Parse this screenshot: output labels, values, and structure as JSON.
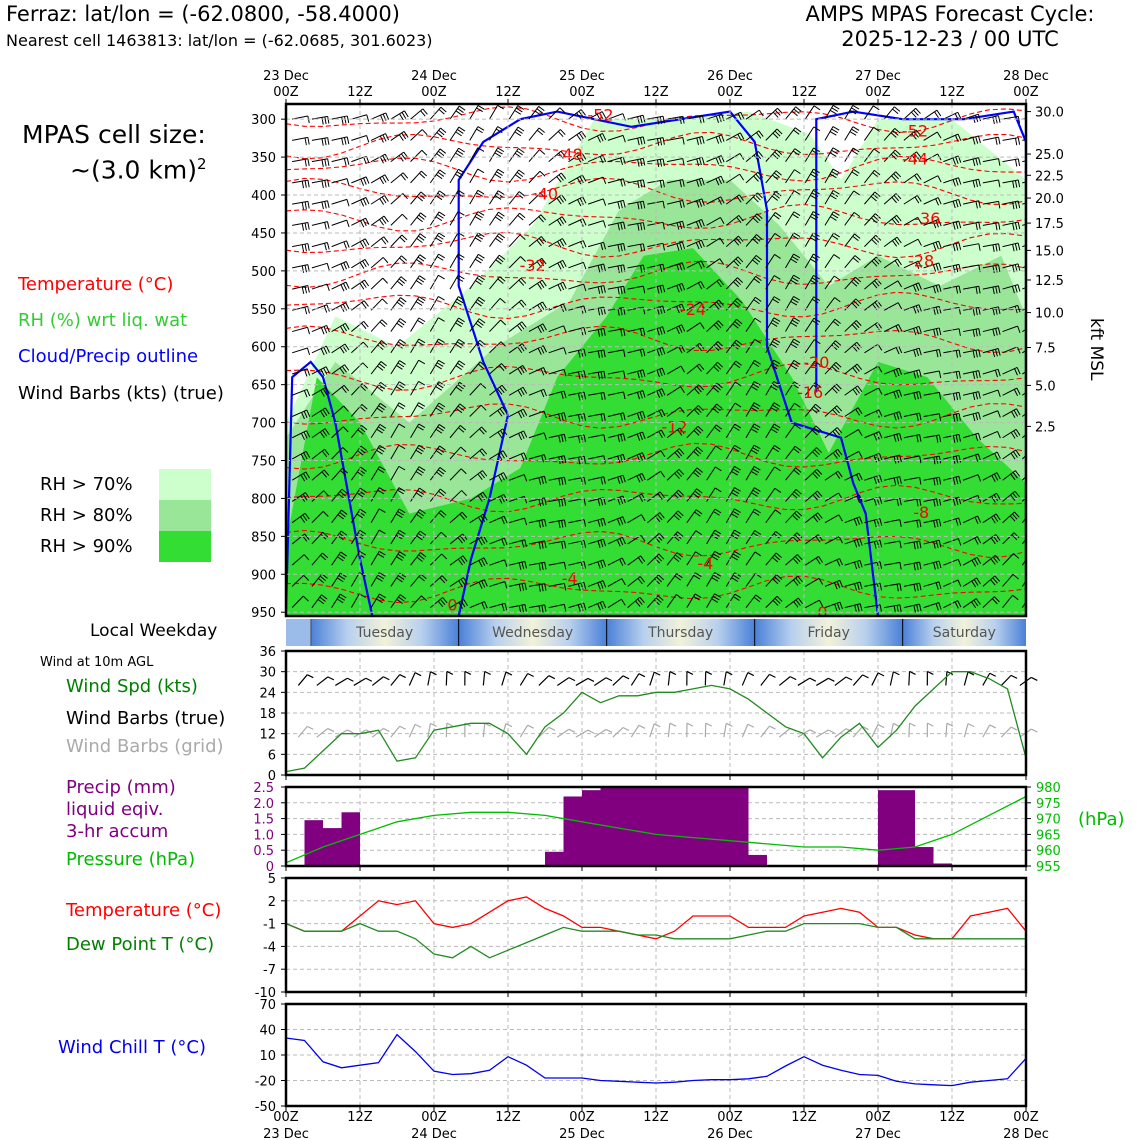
{
  "header": {
    "location": "Ferraz: lat/lon = (-62.0800, -58.4000)",
    "nearest_cell": "Nearest cell 1463813: lat/lon = (-62.0685, 301.6023)",
    "forecast_title": "AMPS MPAS Forecast Cycle:",
    "forecast_cycle": "2025-12-23 / 00 UTC"
  },
  "cell_size": {
    "line1": "MPAS cell size:",
    "line2_prefix": "~(3.0 km)",
    "line2_sup": "2"
  },
  "legend": {
    "temperature": "Temperature (°C)",
    "rh": "RH (%) wrt liq. wat",
    "cloud": "Cloud/Precip outline",
    "wind_barbs": "Wind Barbs (kts) (true)",
    "rh70": "RH > 70%",
    "rh80": "RH > 80%",
    "rh90": "RH > 90%",
    "colors": {
      "temp": "#ff0000",
      "rh": "#33cc33",
      "cloud": "#0000ff",
      "rh70": "#ccffcc",
      "rh80": "#99e699",
      "rh90": "#33dd33",
      "precip": "#800080",
      "pressure": "#00bb00",
      "dew": "#007700",
      "windchill": "#0000ee"
    }
  },
  "time_axis": {
    "top_labels": [
      {
        "t": 0,
        "line1": "23 Dec",
        "line2": "00Z"
      },
      {
        "t": 12,
        "line1": "",
        "line2": "12Z"
      },
      {
        "t": 24,
        "line1": "24 Dec",
        "line2": "00Z"
      },
      {
        "t": 36,
        "line1": "",
        "line2": "12Z"
      },
      {
        "t": 48,
        "line1": "25 Dec",
        "line2": "00Z"
      },
      {
        "t": 60,
        "line1": "",
        "line2": "12Z"
      },
      {
        "t": 72,
        "line1": "26 Dec",
        "line2": "00Z"
      },
      {
        "t": 84,
        "line1": "",
        "line2": "12Z"
      },
      {
        "t": 96,
        "line1": "27 Dec",
        "line2": "00Z"
      },
      {
        "t": 108,
        "line1": "",
        "line2": "12Z"
      },
      {
        "t": 120,
        "line1": "28 Dec",
        "line2": "00Z"
      }
    ]
  },
  "weekday": {
    "label": "Local Weekday",
    "days": [
      {
        "name": "Tuesday",
        "t0": 4,
        "t1": 28
      },
      {
        "name": "Wednesday",
        "t0": 28,
        "t1": 52
      },
      {
        "name": "Thursday",
        "t0": 52,
        "t1": 76
      },
      {
        "name": "Friday",
        "t0": 76,
        "t1": 100
      },
      {
        "name": "Saturday",
        "t0": 100,
        "t1": 120
      }
    ]
  },
  "chart_data": [
    {
      "type": "heatmap",
      "name": "vertical-profile",
      "ylabel_right": "kft MSL",
      "y_left_ticks": [
        300,
        350,
        400,
        450,
        500,
        550,
        600,
        650,
        700,
        750,
        800,
        850,
        900,
        950
      ],
      "y_right_ticks": [
        {
          "label": "30.0",
          "p": 290
        },
        {
          "label": "25.0",
          "p": 346
        },
        {
          "label": "22.5",
          "p": 374
        },
        {
          "label": "20.0",
          "p": 404
        },
        {
          "label": "17.5",
          "p": 437
        },
        {
          "label": "15.0",
          "p": 473
        },
        {
          "label": "12.5",
          "p": 512
        },
        {
          "label": "10.0",
          "p": 555
        },
        {
          "label": "7.5",
          "p": 601
        },
        {
          "label": "5.0",
          "p": 651
        },
        {
          "label": "2.5",
          "p": 705
        }
      ],
      "ylim": [
        955,
        280
      ],
      "xlim": [
        0,
        120
      ],
      "temperature_labels": [
        {
          "t": 51,
          "p": 294,
          "v": "-52"
        },
        {
          "t": 46,
          "p": 346,
          "v": "-48"
        },
        {
          "t": 42,
          "p": 398,
          "v": "-40"
        },
        {
          "t": 40,
          "p": 492,
          "v": "-32"
        },
        {
          "t": 66,
          "p": 550,
          "v": "-24"
        },
        {
          "t": 86,
          "p": 620,
          "v": "-20"
        },
        {
          "t": 85,
          "p": 660,
          "v": "-16"
        },
        {
          "t": 63,
          "p": 705,
          "v": "-12"
        },
        {
          "t": 103,
          "p": 818,
          "v": "-8"
        },
        {
          "t": 68,
          "p": 885,
          "v": "-4"
        },
        {
          "t": 46,
          "p": 905,
          "v": "-4"
        },
        {
          "t": 27,
          "p": 940,
          "v": "0"
        },
        {
          "t": 87,
          "p": 950,
          "v": "0"
        },
        {
          "t": 102,
          "p": 315,
          "v": "-52"
        },
        {
          "t": 102,
          "p": 352,
          "v": "-44"
        },
        {
          "t": 104,
          "p": 430,
          "v": "-36"
        },
        {
          "t": 103,
          "p": 486,
          "v": "-28"
        }
      ]
    },
    {
      "type": "line",
      "name": "wind-10m",
      "title": "Wind at 10m AGL",
      "labels": [
        "Wind Spd (kts)",
        "Wind Barbs (true)",
        "Wind Barbs (grid)"
      ],
      "x": [
        0,
        3,
        6,
        9,
        12,
        15,
        18,
        21,
        24,
        27,
        30,
        33,
        36,
        39,
        42,
        45,
        48,
        51,
        54,
        57,
        60,
        63,
        66,
        69,
        72,
        75,
        78,
        81,
        84,
        87,
        90,
        93,
        96,
        99,
        102,
        105,
        108,
        111,
        114,
        117,
        120
      ],
      "values": [
        1,
        2,
        7,
        12,
        12,
        13,
        4,
        5,
        13,
        14,
        15,
        15,
        12,
        6,
        14,
        18,
        24,
        21,
        23,
        23,
        24,
        24,
        25,
        26,
        25,
        22,
        18,
        14,
        12,
        5,
        11,
        15,
        8,
        13,
        20,
        25,
        30,
        30,
        28,
        25,
        5
      ],
      "ylim": [
        0,
        36
      ],
      "yticks": [
        0,
        6,
        12,
        18,
        24,
        30,
        36
      ]
    },
    {
      "type": "bar",
      "name": "precip-pressure",
      "labels": [
        "Precip (mm)",
        "liquid eqiv.",
        "3-hr accum",
        "Pressure (hPa)"
      ],
      "right_unit": "(hPa)",
      "precip": [
        {
          "t0": 3,
          "t1": 6,
          "v": 1.45
        },
        {
          "t0": 6,
          "t1": 9,
          "v": 1.2
        },
        {
          "t0": 9,
          "t1": 12,
          "v": 1.7
        },
        {
          "t0": 42,
          "t1": 45,
          "v": 0.45
        },
        {
          "t0": 45,
          "t1": 48,
          "v": 2.2
        },
        {
          "t0": 48,
          "t1": 51,
          "v": 2.4
        },
        {
          "t0": 51,
          "t1": 54,
          "v": 2.5
        },
        {
          "t0": 54,
          "t1": 57,
          "v": 2.5
        },
        {
          "t0": 57,
          "t1": 60,
          "v": 2.5
        },
        {
          "t0": 60,
          "t1": 63,
          "v": 2.5
        },
        {
          "t0": 63,
          "t1": 66,
          "v": 2.5
        },
        {
          "t0": 66,
          "t1": 69,
          "v": 2.5
        },
        {
          "t0": 69,
          "t1": 72,
          "v": 2.5
        },
        {
          "t0": 72,
          "t1": 75,
          "v": 2.5
        },
        {
          "t0": 75,
          "t1": 78,
          "v": 0.35
        },
        {
          "t0": 96,
          "t1": 99,
          "v": 2.4
        },
        {
          "t0": 99,
          "t1": 102,
          "v": 2.4
        },
        {
          "t0": 102,
          "t1": 105,
          "v": 0.6
        },
        {
          "t0": 105,
          "t1": 108,
          "v": 0.08
        }
      ],
      "precip_ylim": [
        0,
        2.5
      ],
      "precip_yticks": [
        "0",
        "0.5",
        "1.0",
        "1.5",
        "2.0",
        "2.5"
      ],
      "pressure_x": [
        0,
        6,
        12,
        18,
        24,
        30,
        36,
        42,
        48,
        54,
        60,
        66,
        72,
        78,
        84,
        90,
        96,
        102,
        108,
        114,
        120
      ],
      "pressure": [
        956,
        961,
        965,
        969,
        971,
        972,
        972,
        971,
        969,
        967,
        965,
        964,
        963,
        962,
        961,
        961,
        960,
        961,
        965,
        971,
        977
      ],
      "pressure_ylim": [
        955,
        980
      ],
      "pressure_yticks": [
        "955",
        "960",
        "965",
        "970",
        "975",
        "980"
      ]
    },
    {
      "type": "line",
      "name": "temperature-dewpoint",
      "series": [
        {
          "name": "Temperature (°C)",
          "x": [
            0,
            3,
            6,
            9,
            12,
            15,
            18,
            21,
            24,
            27,
            30,
            33,
            36,
            39,
            42,
            45,
            48,
            51,
            54,
            57,
            60,
            63,
            66,
            69,
            72,
            75,
            78,
            81,
            84,
            87,
            90,
            93,
            96,
            99,
            102,
            105,
            108,
            111,
            114,
            117,
            120
          ],
          "values": [
            -1,
            -2,
            -2,
            -2,
            0,
            2,
            1.5,
            2,
            -1,
            -1.5,
            -1,
            0.5,
            2,
            2.5,
            1,
            0,
            -1.5,
            -1.5,
            -2,
            -2.5,
            -3,
            -2,
            0,
            0,
            0,
            -1.5,
            -1.5,
            -1.5,
            0,
            0.5,
            1,
            0.5,
            -1.5,
            -1.5,
            -2.5,
            -3,
            -3,
            0,
            0.5,
            1,
            -2
          ]
        },
        {
          "name": "Dew Point T (°C)",
          "x": [
            0,
            3,
            6,
            9,
            12,
            15,
            18,
            21,
            24,
            27,
            30,
            33,
            36,
            39,
            42,
            45,
            48,
            51,
            54,
            57,
            60,
            63,
            66,
            69,
            72,
            75,
            78,
            81,
            84,
            87,
            90,
            93,
            96,
            99,
            102,
            105,
            108,
            111,
            114,
            117,
            120
          ],
          "values": [
            -1,
            -2,
            -2,
            -2,
            -1,
            -2,
            -2,
            -3,
            -5,
            -5.5,
            -4,
            -5.5,
            -4.5,
            -3.5,
            -2.5,
            -1.5,
            -2,
            -2,
            -2,
            -2.5,
            -2.5,
            -3,
            -3,
            -3,
            -3,
            -2.5,
            -2,
            -2,
            -1,
            -1,
            -1,
            -1,
            -1.5,
            -1.5,
            -3,
            -3,
            -3,
            -3,
            -3,
            -3,
            -3
          ]
        }
      ],
      "ylim": [
        -10,
        5
      ],
      "yticks": [
        5,
        2,
        -1,
        -4,
        -7,
        -10
      ]
    },
    {
      "type": "line",
      "name": "wind-chill",
      "series": [
        {
          "name": "Wind Chill T (°C)",
          "x": [
            0,
            3,
            6,
            9,
            12,
            15,
            18,
            21,
            24,
            27,
            30,
            33,
            36,
            39,
            42,
            45,
            48,
            51,
            54,
            57,
            60,
            63,
            66,
            69,
            72,
            75,
            78,
            81,
            84,
            87,
            90,
            93,
            96,
            99,
            102,
            105,
            108,
            111,
            114,
            117,
            120
          ],
          "values": [
            30,
            27,
            2,
            -5,
            -2,
            1,
            34,
            14,
            -9,
            -13,
            -12,
            -8,
            8,
            -2,
            -17,
            -17,
            -17,
            -20,
            -21,
            -22,
            -23,
            -22,
            -20,
            -19,
            -19,
            -18,
            -15,
            -3,
            8,
            -2,
            -8,
            -13,
            -14,
            -21,
            -24,
            -25,
            -26,
            -22,
            -20,
            -18,
            6
          ]
        }
      ],
      "ylim": [
        -50,
        70
      ],
      "yticks": [
        70,
        40,
        10,
        -20,
        -50
      ]
    }
  ],
  "panel_titles": {
    "windchill": "Wind Chill T (°C)",
    "temp": "Temperature (°C)",
    "dew": "Dew Point T (°C)"
  }
}
